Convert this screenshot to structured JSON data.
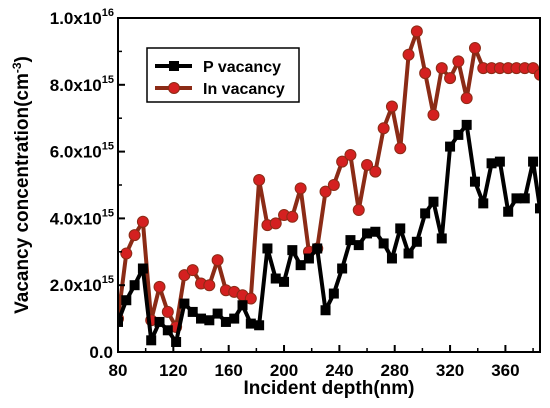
{
  "chart_data": {
    "type": "line",
    "xlabel": "Incident depth(nm)",
    "ylabel": "Vacancy concentration(cm",
    "ylabel_sup": "-3",
    "ylabel_close": ")",
    "xlim": [
      80,
      385
    ],
    "ylim": [
      0,
      1e+16
    ],
    "x_ticks": [
      80,
      120,
      160,
      200,
      240,
      280,
      320,
      360
    ],
    "x_tick_labels": [
      "80",
      "120",
      "160",
      "200",
      "240",
      "280",
      "320",
      "360"
    ],
    "y_ticks": [
      {
        "value": 0,
        "mantissa": "0.0",
        "exp": ""
      },
      {
        "value": 2000000000000000.0,
        "mantissa": "2.0x10",
        "exp": "15"
      },
      {
        "value": 4000000000000000.0,
        "mantissa": "4.0x10",
        "exp": "15"
      },
      {
        "value": 6000000000000000.0,
        "mantissa": "6.0x10",
        "exp": "15"
      },
      {
        "value": 8000000000000000.0,
        "mantissa": "8.0x10",
        "exp": "15"
      },
      {
        "value": 1e+16,
        "mantissa": "1.0x10",
        "exp": "16"
      }
    ],
    "legend_position": "top-left",
    "series": [
      {
        "name": "P vacancy",
        "color": "#000000",
        "marker": "square",
        "x": [
          80,
          86,
          92,
          98,
          104,
          110,
          116,
          122,
          128,
          134,
          140,
          146,
          152,
          158,
          164,
          170,
          176,
          182,
          188,
          194,
          200,
          206,
          212,
          218,
          224,
          230,
          236,
          242,
          248,
          254,
          260,
          266,
          272,
          278,
          284,
          290,
          296,
          302,
          308,
          314,
          320,
          326,
          332,
          338,
          344,
          350,
          356,
          362,
          368,
          374,
          380,
          385
        ],
        "y": [
          900000000000000.0,
          1550000000000000.0,
          2000000000000000.0,
          2500000000000000.0,
          350000000000000.0,
          900000000000000.0,
          650000000000000.0,
          300000000000000.0,
          1450000000000000.0,
          1200000000000000.0,
          1000000000000000.0,
          950000000000000.0,
          1150000000000000.0,
          900000000000000.0,
          1000000000000000.0,
          1400000000000000.0,
          850000000000000.0,
          800000000000000.0,
          3100000000000000.0,
          2200000000000000.0,
          2100000000000000.0,
          3050000000000000.0,
          2600000000000000.0,
          2800000000000000.0,
          3100000000000000.0,
          1250000000000000.0,
          1750000000000000.0,
          2500000000000000.0,
          3350000000000000.0,
          3200000000000000.0,
          3550000000000000.0,
          3600000000000000.0,
          3250000000000000.0,
          2800000000000000.0,
          3700000000000000.0,
          2950000000000000.0,
          3300000000000000.0,
          4150000000000000.0,
          4500000000000000.0,
          3400000000000000.0,
          6150000000000000.0,
          6500000000000000.0,
          6800000000000000.0,
          5100000000000000.0,
          4450000000000000.0,
          5650000000000000.0,
          5700000000000000.0,
          4200000000000000.0,
          4600000000000000.0,
          4600000000000000.0,
          5700000000000000.0,
          4300000000000000.0
        ],
        "y_note": ""
      },
      {
        "name": "In vacancy",
        "color": "#d42020",
        "line_color": "#8b2b16",
        "marker": "circle",
        "x": [
          80,
          86,
          92,
          98,
          104,
          110,
          116,
          122,
          128,
          134,
          140,
          146,
          152,
          158,
          164,
          170,
          176,
          182,
          188,
          194,
          200,
          206,
          212,
          218,
          224,
          230,
          236,
          242,
          248,
          254,
          260,
          266,
          272,
          278,
          284,
          290,
          296,
          302,
          308,
          314,
          320,
          326,
          332,
          338,
          344,
          350,
          356,
          362,
          368,
          374,
          380,
          385
        ],
        "y": [
          1000000000000000.0,
          2950000000000000.0,
          3500000000000000.0,
          3900000000000000.0,
          950000000000000.0,
          1950000000000000.0,
          1200000000000000.0,
          750000000000000.0,
          2300000000000000.0,
          2450000000000000.0,
          2050000000000000.0,
          2000000000000000.0,
          2750000000000000.0,
          1850000000000000.0,
          1800000000000000.0,
          1700000000000000.0,
          1600000000000000.0,
          5150000000000000.0,
          3800000000000000.0,
          3850000000000000.0,
          4100000000000000.0,
          4050000000000000.0,
          4900000000000000.0,
          3000000000000000.0,
          3100000000000000.0,
          4800000000000000.0,
          5000000000000000.0,
          5700000000000000.0,
          5900000000000000.0,
          4250000000000000.0,
          5600000000000000.0,
          5400000000000000.0,
          6700000000000000.0,
          7350000000000000.0,
          6100000000000000.0,
          8900000000000000.0,
          9600000000000000.0,
          8350000000000000.0,
          7100000000000000.0,
          8500000000000000.0,
          8200000000000000.0,
          8700000000000000.0,
          7600000000000000.0,
          9100000000000000.0,
          8500000000000000.0,
          8500000000000000.0,
          8500000000000000.0,
          8500000000000000.0,
          8500000000000000.0,
          8500000000000000.0,
          8500000000000000.0,
          8300000000000000.0
        ]
      }
    ]
  }
}
